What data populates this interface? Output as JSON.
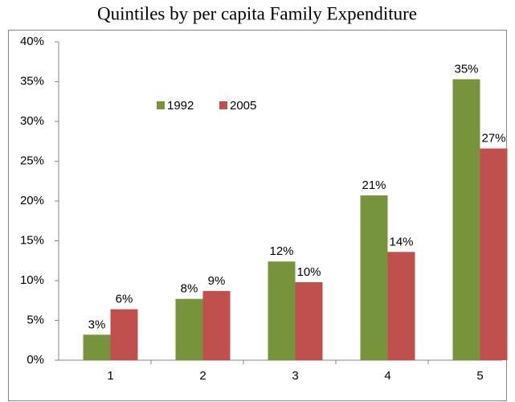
{
  "chart_data": {
    "type": "bar",
    "title": "Quintiles by per capita Family Expenditure",
    "categories": [
      "1",
      "2",
      "3",
      "4",
      "5"
    ],
    "series": [
      {
        "name": "1992",
        "color": "#77933c",
        "values": [
          3.2,
          7.7,
          12.4,
          20.7,
          35.3
        ],
        "value_labels": [
          "3%",
          "8%",
          "12%",
          "21%",
          "35%"
        ]
      },
      {
        "name": "2005",
        "color": "#c0504d",
        "values": [
          6.4,
          8.7,
          9.8,
          13.6,
          26.6
        ],
        "value_labels": [
          "6%",
          "9%",
          "10%",
          "14%",
          "27%"
        ]
      }
    ],
    "ylim": [
      0,
      40
    ],
    "yticks": [
      {
        "value": 0,
        "label": "0%"
      },
      {
        "value": 5,
        "label": "5%"
      },
      {
        "value": 10,
        "label": "10%"
      },
      {
        "value": 15,
        "label": "15%"
      },
      {
        "value": 20,
        "label": "20%"
      },
      {
        "value": 25,
        "label": "25%"
      },
      {
        "value": 30,
        "label": "30%"
      },
      {
        "value": 35,
        "label": "35%"
      },
      {
        "value": 40,
        "label": "40%"
      }
    ],
    "grid": false,
    "legend": "top-left"
  }
}
